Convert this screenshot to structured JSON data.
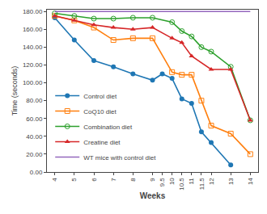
{
  "chart_data": {
    "type": "line",
    "x": [
      4,
      5,
      6,
      7,
      8,
      9,
      9.5,
      10,
      10.5,
      11,
      11.5,
      12,
      13,
      14
    ],
    "series": [
      {
        "name": "Control diet",
        "marker": "circle",
        "values": [
          173,
          148,
          125,
          118,
          110,
          103,
          110,
          105,
          82,
          77,
          45,
          33,
          8,
          null
        ]
      },
      {
        "name": "CoQ10 diet",
        "marker": "square-open",
        "values": [
          175,
          170,
          162,
          148,
          150,
          150,
          null,
          112,
          109,
          109,
          80,
          52,
          43,
          20
        ]
      },
      {
        "name": "Combination diet",
        "marker": "circle-open",
        "values": [
          178,
          175,
          172,
          172,
          173,
          173,
          null,
          168,
          158,
          152,
          140,
          135,
          118,
          58
        ]
      },
      {
        "name": "Creatine diet",
        "marker": "triangle-up",
        "values": [
          175,
          170,
          165,
          162,
          160,
          162,
          null,
          150,
          145,
          130,
          null,
          115,
          115,
          58
        ]
      },
      {
        "name": "WT mice with control diet",
        "values": [
          180,
          180,
          180,
          180,
          180,
          180,
          180,
          180,
          180,
          180,
          180,
          180,
          180,
          180
        ]
      }
    ],
    "x_label": "Weeks",
    "y_label": "Time (seconds)",
    "xlim": [
      3.6,
      14.4
    ],
    "xticks": [
      4,
      5,
      6,
      7,
      8,
      9,
      9.5,
      10,
      10.5,
      11,
      11.5,
      12,
      13,
      14
    ],
    "ylim": [
      0,
      182
    ],
    "yticks": [
      {
        "value": 0,
        "label": "0.00"
      },
      {
        "value": 20,
        "label": "20.00"
      },
      {
        "value": 40,
        "label": "40.00"
      },
      {
        "value": 60,
        "label": "60.00"
      },
      {
        "value": 80,
        "label": "80.00"
      },
      {
        "value": 100,
        "label": "100.00"
      },
      {
        "value": 120,
        "label": "120.00"
      },
      {
        "value": 140,
        "label": "140.00"
      },
      {
        "value": 160,
        "label": "160.00"
      },
      {
        "value": 180,
        "label": "180.00"
      }
    ],
    "grid": false,
    "legend": "lower left"
  }
}
